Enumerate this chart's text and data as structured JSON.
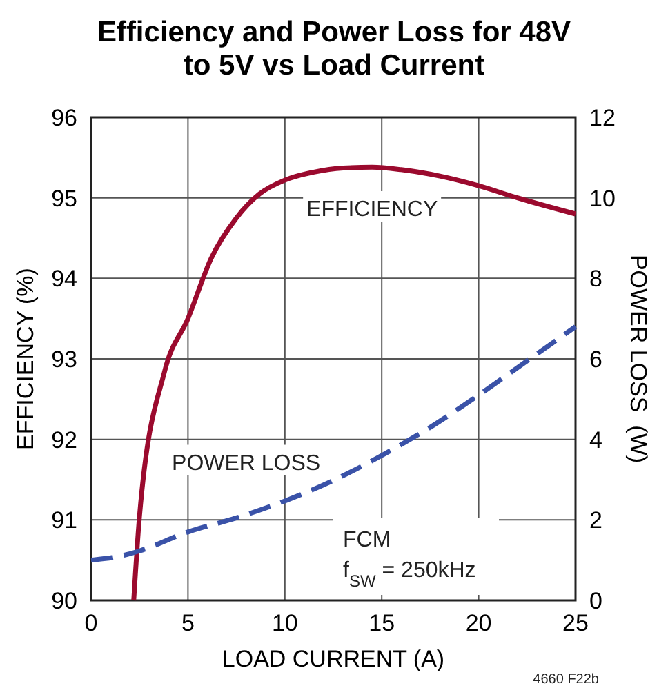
{
  "chart_data": {
    "type": "line",
    "title": "Efficiency and Power Loss for 48V to 5V vs Load Current",
    "xlabel": "LOAD CURRENT (A)",
    "ylabel": "EFFICIENCY (%)",
    "y2label": "POWER LOSS  (W)",
    "xlim": [
      0,
      25
    ],
    "xticks": [
      0,
      5,
      10,
      15,
      20,
      25
    ],
    "ylim": [
      90,
      96
    ],
    "yticks": [
      90,
      91,
      92,
      93,
      94,
      95,
      96
    ],
    "y2lim": [
      0,
      12
    ],
    "y2ticks": [
      0,
      2,
      4,
      6,
      8,
      10,
      12
    ],
    "grid": true,
    "series": [
      {
        "name": "EFFICIENCY",
        "color": "#9b0a2e",
        "line_style": "solid",
        "x": [
          2.2,
          2.5,
          3.8,
          5,
          6.2,
          7.5,
          8.7,
          10,
          11.5,
          13,
          14.5,
          16,
          18,
          20,
          22,
          25
        ],
        "values": [
          90,
          91.05,
          92.85,
          93.5,
          94.25,
          94.75,
          95.05,
          95.22,
          95.32,
          95.37,
          95.38,
          95.35,
          95.27,
          95.15,
          95.0,
          94.8
        ]
      },
      {
        "name": "POWER LOSS",
        "color": "#3a52a8",
        "line_style": "dashed",
        "axis": "y2",
        "x": [
          0,
          1.5,
          2.5,
          5,
          7.5,
          10,
          12.5,
          15,
          17.5,
          20,
          22.5,
          25
        ],
        "values": [
          1.0,
          1.1,
          1.23,
          1.7,
          2.05,
          2.47,
          2.98,
          3.6,
          4.3,
          5.1,
          5.95,
          6.8
        ]
      }
    ],
    "annotations": [
      "FCM",
      "f$_{SW}$ = 250kHz",
      "4660 F22b"
    ]
  }
}
